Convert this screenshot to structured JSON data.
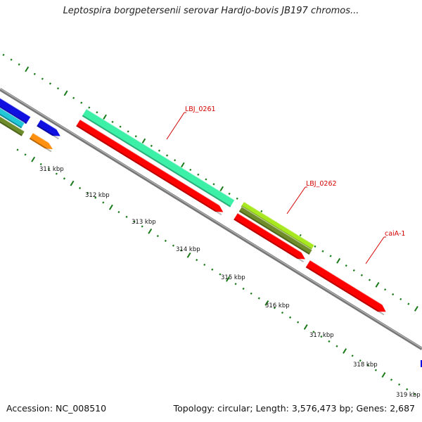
{
  "title": "Leptospira borgpetersenii serovar Hardjo-bovis JB197 chromos...",
  "footer": {
    "accession": "Accession: NC_008510",
    "summary": "Topology: circular; Length: 3,576,473 bp; Genes: 2,687"
  },
  "ticks": [
    {
      "label": "311 kbp"
    },
    {
      "label": "312 kbp"
    },
    {
      "label": "313 kbp"
    },
    {
      "label": "314 kbp"
    },
    {
      "label": "315 kbp"
    },
    {
      "label": "316 kbp"
    },
    {
      "label": "317 kbp"
    },
    {
      "label": "318 kbp"
    },
    {
      "label": "319 kbp"
    }
  ],
  "gene_labels": [
    {
      "text": "LBJ_0261"
    },
    {
      "text": "LBJ_0262"
    },
    {
      "text": "caiA-1"
    }
  ],
  "colors": {
    "backbone": "#808080",
    "cds": "#ff0000",
    "tick": "#1a7a1a",
    "label": "#d40000",
    "teal": "#3cf0a8",
    "lime": "#a8e820",
    "olive": "#6e8c2a",
    "blue": "#1010e0",
    "cyan": "#20c8d8",
    "orange": "#ff9010"
  }
}
